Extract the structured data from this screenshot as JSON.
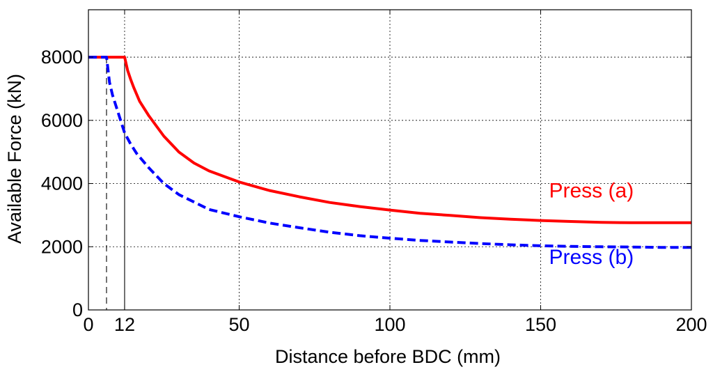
{
  "chart_data": {
    "type": "line",
    "title": "",
    "xlabel": "Distance before BDC (mm)",
    "ylabel": "Available Force (kN)",
    "xlim": [
      0,
      200
    ],
    "ylim": [
      0,
      9500
    ],
    "xticks": [
      0,
      12,
      50,
      100,
      150,
      200
    ],
    "yticks": [
      0,
      2000,
      4000,
      6000,
      8000
    ],
    "grid": true,
    "grid_style": "dotted",
    "reference_lines": [
      {
        "x": 6,
        "style": "dashed",
        "color": "#000000"
      },
      {
        "x": 12,
        "style": "solid",
        "color": "#000000"
      }
    ],
    "series": [
      {
        "name": "Press (a)",
        "color": "#ff0000",
        "line_style": "solid",
        "x": [
          0,
          12,
          13,
          14,
          15,
          17,
          20,
          25,
          30,
          35,
          40,
          50,
          60,
          70,
          80,
          90,
          100,
          110,
          120,
          130,
          140,
          150,
          160,
          170,
          180,
          190,
          200
        ],
        "y": [
          8000,
          8000,
          7580,
          7300,
          7050,
          6600,
          6150,
          5500,
          5000,
          4650,
          4400,
          4050,
          3780,
          3580,
          3400,
          3270,
          3160,
          3060,
          2990,
          2920,
          2870,
          2830,
          2800,
          2770,
          2760,
          2760,
          2760
        ]
      },
      {
        "name": "Press (b)",
        "color": "#0000ff",
        "line_style": "dashed",
        "x": [
          0,
          6,
          7,
          8,
          10,
          12,
          14,
          16,
          20,
          25,
          30,
          40,
          50,
          60,
          70,
          80,
          90,
          100,
          110,
          120,
          130,
          140,
          150,
          160,
          170,
          180,
          190,
          200
        ],
        "y": [
          8000,
          8000,
          7200,
          6800,
          6200,
          5600,
          5250,
          4950,
          4500,
          4000,
          3650,
          3180,
          2950,
          2750,
          2600,
          2460,
          2350,
          2270,
          2200,
          2150,
          2100,
          2060,
          2030,
          2010,
          2000,
          1990,
          1980,
          1980
        ]
      }
    ],
    "annotations": [
      {
        "text": "Press (a)",
        "x": 150,
        "y": 3560,
        "color": "#ff0000"
      },
      {
        "text": "Press (b)",
        "x": 150,
        "y": 1460,
        "color": "#0000ff"
      }
    ]
  }
}
